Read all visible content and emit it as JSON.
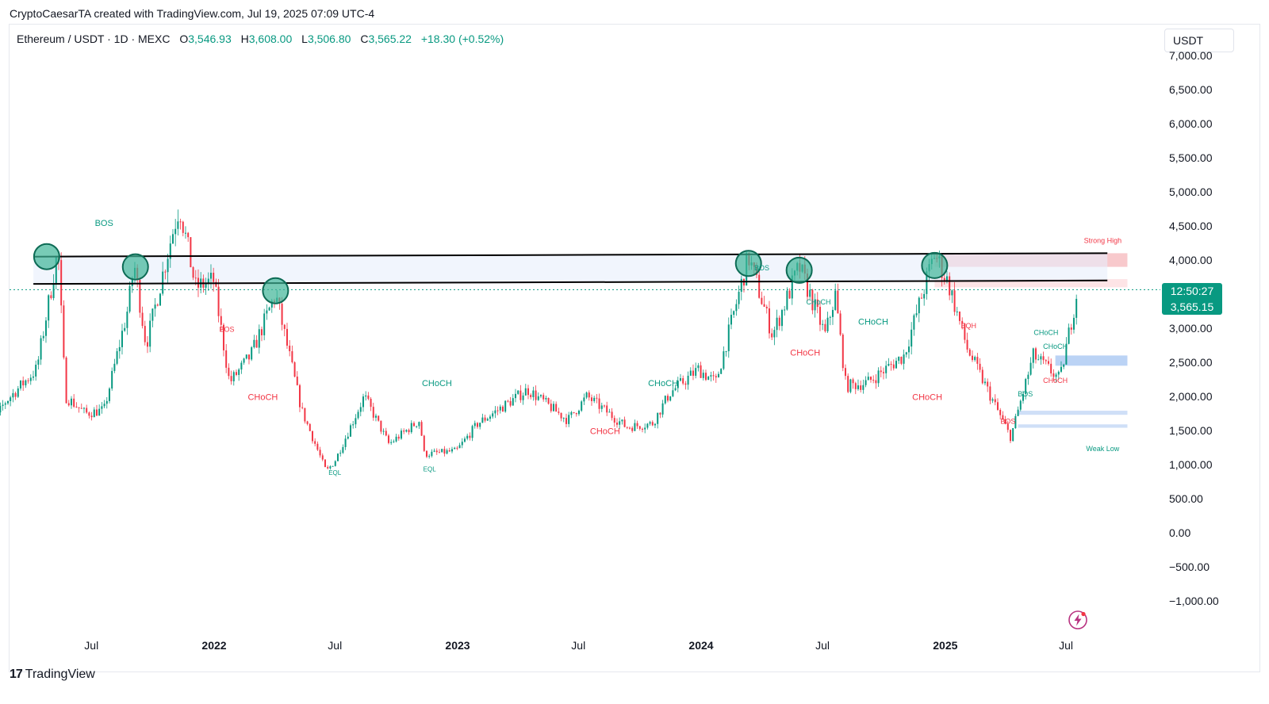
{
  "caption": "CryptoCaesarTA created with TradingView.com, Jul 19, 2025 07:09 UTC-4",
  "legend": {
    "symbol": "Ethereum / USDT · 1D · MEXC",
    "open_key": "O",
    "open": "3,546.93",
    "high_key": "H",
    "high": "3,608.00",
    "low_key": "L",
    "low": "3,506.80",
    "close_key": "C",
    "close": "3,565.22",
    "change": "+18.30 (+0.52%)"
  },
  "currency": "USDT",
  "price_tag": {
    "timer": "12:50:27",
    "price": "3,565.15"
  },
  "brand": {
    "logo": "17",
    "name": "TradingView"
  },
  "icons": {
    "lightning": "lightning-icon",
    "brand": "tradingview-logo-icon"
  },
  "colors": {
    "bull": "#089981",
    "bear": "#f23645",
    "bos_teal": "#089981",
    "choch_red": "#f23645",
    "supply_zone": "#f8c9cc",
    "demand_zone": "#bbd3f5",
    "band_fill": "#e8eefc"
  },
  "chart_data": {
    "type": "candlestick",
    "title": "",
    "y_axis": {
      "min": -1000,
      "max": 7000,
      "ticks": [
        "7,000.00",
        "6,500.00",
        "6,000.00",
        "5,500.00",
        "5,000.00",
        "4,500.00",
        "4,000.00",
        "3,500.00",
        "3,000.00",
        "2,500.00",
        "2,000.00",
        "1,500.00",
        "1,000.00",
        "500.00",
        "0.00",
        "−500.00",
        "−1,000.00"
      ]
    },
    "x_axis": {
      "ticks": [
        {
          "label": "Jul",
          "date": "2021-07-01",
          "bold": false
        },
        {
          "label": "2022",
          "date": "2022-01-01",
          "bold": true
        },
        {
          "label": "Jul",
          "date": "2022-07-01",
          "bold": false
        },
        {
          "label": "2023",
          "date": "2023-01-01",
          "bold": true
        },
        {
          "label": "Jul",
          "date": "2023-07-01",
          "bold": false
        },
        {
          "label": "2024",
          "date": "2024-01-01",
          "bold": true
        },
        {
          "label": "Jul",
          "date": "2024-07-01",
          "bold": false
        },
        {
          "label": "2025",
          "date": "2025-01-01",
          "bold": true
        },
        {
          "label": "Jul",
          "date": "2025-07-01",
          "bold": false
        }
      ]
    },
    "price_path": [
      [
        "2021-01-15",
        1200
      ],
      [
        "2021-02-20",
        1900
      ],
      [
        "2021-04-10",
        2400
      ],
      [
        "2021-05-12",
        4150
      ],
      [
        "2021-05-23",
        2000
      ],
      [
        "2021-06-22",
        1750
      ],
      [
        "2021-07-20",
        1800
      ],
      [
        "2021-08-25",
        3300
      ],
      [
        "2021-09-03",
        3950
      ],
      [
        "2021-09-21",
        2750
      ],
      [
        "2021-10-28",
        4300
      ],
      [
        "2021-11-10",
        4800
      ],
      [
        "2021-12-04",
        3600
      ],
      [
        "2021-12-31",
        3700
      ],
      [
        "2022-01-24",
        2200
      ],
      [
        "2022-02-25",
        2600
      ],
      [
        "2022-04-03",
        3500
      ],
      [
        "2022-05-12",
        1800
      ],
      [
        "2022-06-18",
        900
      ],
      [
        "2022-07-01",
        1050
      ],
      [
        "2022-08-14",
        2000
      ],
      [
        "2022-09-20",
        1300
      ],
      [
        "2022-11-05",
        1650
      ],
      [
        "2022-11-12",
        1150
      ],
      [
        "2022-12-30",
        1200
      ],
      [
        "2023-01-31",
        1600
      ],
      [
        "2023-04-16",
        2100
      ],
      [
        "2023-06-15",
        1650
      ],
      [
        "2023-07-14",
        2000
      ],
      [
        "2023-09-11",
        1550
      ],
      [
        "2023-10-20",
        1600
      ],
      [
        "2023-11-15",
        2050
      ],
      [
        "2023-12-28",
        2400
      ],
      [
        "2024-01-23",
        2200
      ],
      [
        "2024-03-12",
        4050
      ],
      [
        "2024-04-17",
        2900
      ],
      [
        "2024-05-27",
        3900
      ],
      [
        "2024-07-05",
        2900
      ],
      [
        "2024-07-20",
        3500
      ],
      [
        "2024-08-05",
        2150
      ],
      [
        "2024-09-06",
        2200
      ],
      [
        "2024-10-31",
        2600
      ],
      [
        "2024-12-16",
        4100
      ],
      [
        "2025-01-06",
        3650
      ],
      [
        "2025-02-03",
        2700
      ],
      [
        "2025-03-10",
        2000
      ],
      [
        "2025-04-09",
        1400
      ],
      [
        "2025-05-13",
        2600
      ],
      [
        "2025-06-22",
        2250
      ],
      [
        "2025-07-18",
        3565
      ]
    ],
    "horizontal_lines": [
      {
        "from": "2021-04-05",
        "to": "2025-09-01",
        "y_from": 4050,
        "y_to": 4100,
        "color": "#000000"
      },
      {
        "from": "2021-04-05",
        "to": "2025-09-01",
        "y_from": 3650,
        "y_to": 3700,
        "color": "#000000"
      }
    ],
    "zones": [
      {
        "from": "2024-12-16",
        "to": "2025-10-01",
        "y_low": 3900,
        "y_high": 4100,
        "color": "#f8c9cc"
      },
      {
        "from": "2024-12-16",
        "to": "2025-10-01",
        "y_low": 3600,
        "y_high": 3720,
        "color": "#fde4e6"
      },
      {
        "from": "2025-06-15",
        "to": "2025-10-01",
        "y_low": 2450,
        "y_high": 2600,
        "color": "#bbd3f5"
      },
      {
        "from": "2025-04-20",
        "to": "2025-10-01",
        "y_low": 1730,
        "y_high": 1790,
        "color": "#cfdff7"
      },
      {
        "from": "2025-04-20",
        "to": "2025-10-01",
        "y_low": 1540,
        "y_high": 1590,
        "color": "#cfdff7"
      }
    ],
    "circles": [
      {
        "date": "2021-04-25",
        "y": 4050
      },
      {
        "date": "2021-09-05",
        "y": 3900
      },
      {
        "date": "2022-04-03",
        "y": 3550
      },
      {
        "date": "2024-03-12",
        "y": 3950
      },
      {
        "date": "2024-05-27",
        "y": 3850
      },
      {
        "date": "2024-12-16",
        "y": 3920
      }
    ],
    "annotations": [
      {
        "text": "BOS",
        "date": "2021-07-20",
        "y": 4500,
        "color": "teal",
        "size": 11
      },
      {
        "text": "BOS",
        "date": "2022-01-20",
        "y": 2950,
        "color": "red",
        "size": 9
      },
      {
        "text": "CHoCH",
        "date": "2022-03-15",
        "y": 1950,
        "color": "red",
        "size": 11
      },
      {
        "text": "CHoCH",
        "date": "2022-12-01",
        "y": 2150,
        "color": "teal",
        "size": 11
      },
      {
        "text": "EQL",
        "date": "2022-07-01",
        "y": 850,
        "color": "teal",
        "size": 8
      },
      {
        "text": "EQL",
        "date": "2022-11-20",
        "y": 900,
        "color": "teal",
        "size": 8
      },
      {
        "text": "CHoCH",
        "date": "2023-11-05",
        "y": 2150,
        "color": "teal",
        "size": 11
      },
      {
        "text": "CHoCH",
        "date": "2023-08-10",
        "y": 1450,
        "color": "red",
        "size": 11
      },
      {
        "text": "BOS",
        "date": "2024-04-01",
        "y": 3850,
        "color": "teal",
        "size": 9
      },
      {
        "text": "CHoCH",
        "date": "2024-06-25",
        "y": 3350,
        "color": "teal",
        "size": 9
      },
      {
        "text": "CHoCH",
        "date": "2024-06-05",
        "y": 2600,
        "color": "red",
        "size": 11
      },
      {
        "text": "CHoCH",
        "date": "2024-09-15",
        "y": 3050,
        "color": "teal",
        "size": 11
      },
      {
        "text": "CHoCH",
        "date": "2024-12-05",
        "y": 1950,
        "color": "red",
        "size": 11
      },
      {
        "text": "EQH",
        "date": "2025-02-05",
        "y": 3000,
        "color": "red",
        "size": 9
      },
      {
        "text": "BOS",
        "date": "2025-04-05",
        "y": 1600,
        "color": "red",
        "size": 9
      },
      {
        "text": "BOS",
        "date": "2025-05-01",
        "y": 2000,
        "color": "teal",
        "size": 9
      },
      {
        "text": "CHoCH",
        "date": "2025-06-01",
        "y": 2900,
        "color": "teal",
        "size": 9
      },
      {
        "text": "CHoCH",
        "date": "2025-06-15",
        "y": 2700,
        "color": "teal",
        "size": 9
      },
      {
        "text": "CHoCH",
        "date": "2025-06-15",
        "y": 2200,
        "color": "red",
        "size": 9
      },
      {
        "text": "Strong High",
        "date": "2025-08-25",
        "y": 4250,
        "color": "red",
        "size": 9
      },
      {
        "text": "Weak Low",
        "date": "2025-08-25",
        "y": 1200,
        "color": "teal",
        "size": 9
      }
    ]
  }
}
